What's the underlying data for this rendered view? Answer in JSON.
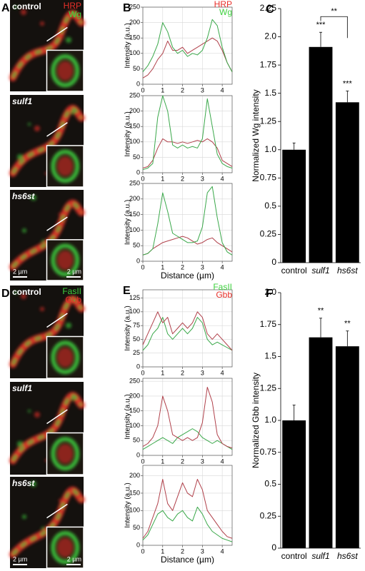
{
  "micrographs": [
    {
      "panel": "A",
      "channels": [
        {
          "name": "HRP",
          "color": "#e8302a"
        },
        {
          "name": "Wg",
          "color": "#3fd13f"
        }
      ],
      "rows": [
        {
          "label": "control",
          "italic": false
        },
        {
          "label": "sulf1",
          "italic": true
        },
        {
          "label": "hs6st",
          "italic": true,
          "scale_bar": "2 µm",
          "inset_scale_bar": "2 µm"
        }
      ]
    },
    {
      "panel": "D",
      "channels": [
        {
          "name": "FasII",
          "color": "#3fd13f"
        },
        {
          "name": "Gbb",
          "color": "#e8302a"
        }
      ],
      "rows": [
        {
          "label": "control",
          "italic": false
        },
        {
          "label": "sulf1",
          "italic": true
        },
        {
          "label": "hs6st",
          "italic": true,
          "scale_bar": "2 µm",
          "inset_scale_bar": "2 µm"
        }
      ]
    }
  ],
  "chart_data": [
    {
      "type": "line",
      "panel": "B",
      "ylabel": "Intensity (a.u.)",
      "legend": true,
      "grid": true,
      "x": [
        0,
        0.25,
        0.5,
        0.75,
        1,
        1.25,
        1.5,
        1.75,
        2,
        2.25,
        2.5,
        2.75,
        3,
        3.25,
        3.5,
        3.75,
        4,
        4.25,
        4.5
      ],
      "series": [
        {
          "name": "HRP",
          "color": "#b0404a",
          "values": [
            20,
            30,
            50,
            80,
            100,
            140,
            110,
            110,
            120,
            100,
            110,
            120,
            130,
            140,
            150,
            140,
            110,
            70,
            40
          ]
        },
        {
          "name": "Wg",
          "color": "#3aa84a",
          "values": [
            40,
            60,
            90,
            130,
            200,
            170,
            120,
            100,
            110,
            90,
            100,
            95,
            110,
            150,
            210,
            190,
            120,
            70,
            40
          ]
        }
      ],
      "xlim": [
        0,
        4.5
      ],
      "xticks": [
        0,
        1,
        2,
        3,
        4
      ],
      "ylim": [
        0,
        250
      ],
      "yticks": [
        0,
        50,
        100,
        150,
        200,
        250
      ]
    },
    {
      "type": "line",
      "legend": false,
      "grid": true,
      "ylabel": "Intensity (a.u.)",
      "x": [
        0,
        0.25,
        0.5,
        0.75,
        1,
        1.25,
        1.5,
        1.75,
        2,
        2.25,
        2.5,
        2.75,
        3,
        3.25,
        3.5,
        3.75,
        4,
        4.25,
        4.5
      ],
      "series": [
        {
          "color": "#b0404a",
          "values": [
            15,
            20,
            40,
            80,
            110,
            100,
            100,
            95,
            100,
            95,
            100,
            105,
            100,
            110,
            100,
            80,
            40,
            30,
            20
          ]
        },
        {
          "color": "#3aa84a",
          "values": [
            10,
            15,
            30,
            180,
            250,
            200,
            90,
            80,
            90,
            80,
            85,
            80,
            110,
            240,
            150,
            60,
            30,
            20,
            15
          ]
        }
      ],
      "xlim": [
        0,
        4.5
      ],
      "xticks": [
        0,
        1,
        2,
        3,
        4
      ],
      "ylim": [
        0,
        250
      ],
      "yticks": [
        0,
        50,
        100,
        150,
        200,
        250
      ]
    },
    {
      "type": "line",
      "legend": false,
      "grid": true,
      "ylabel": "Intensity (a.u.)",
      "xlabel": "Distance (µm)",
      "x": [
        0,
        0.25,
        0.5,
        0.75,
        1,
        1.25,
        1.5,
        1.75,
        2,
        2.25,
        2.5,
        2.75,
        3,
        3.25,
        3.5,
        3.75,
        4,
        4.25,
        4.5
      ],
      "series": [
        {
          "color": "#b0404a",
          "values": [
            20,
            25,
            40,
            50,
            60,
            65,
            70,
            75,
            80,
            75,
            65,
            55,
            60,
            70,
            75,
            60,
            50,
            40,
            30
          ]
        },
        {
          "color": "#3aa84a",
          "values": [
            20,
            25,
            40,
            120,
            220,
            160,
            90,
            80,
            70,
            60,
            60,
            65,
            110,
            220,
            240,
            140,
            60,
            30,
            20
          ]
        }
      ],
      "xlim": [
        0,
        4.5
      ],
      "xticks": [
        0,
        1,
        2,
        3,
        4
      ],
      "ylim": [
        0,
        250
      ],
      "yticks": [
        0,
        50,
        100,
        150,
        200,
        250
      ]
    },
    {
      "type": "bar",
      "panel": "C",
      "ylabel": "Normalized Wg intensity",
      "color": "#000000",
      "categories": [
        "control",
        "sulf1",
        "hs6st"
      ],
      "italic": [
        false,
        true,
        true
      ],
      "values": [
        1.0,
        1.91,
        1.42
      ],
      "errors": [
        0.06,
        0.13,
        0.1
      ],
      "sig_labels": [
        null,
        "***",
        "***"
      ],
      "bracket": {
        "between": [
          1,
          2
        ],
        "label": "**"
      },
      "ylim": [
        0,
        2.25
      ],
      "yticks": [
        0,
        0.25,
        0.5,
        0.75,
        {
          "value": 1,
          "label": "1.0"
        },
        1.25,
        1.5,
        1.75,
        {
          "value": 2,
          "label": "2.0"
        },
        2.25
      ]
    },
    {
      "type": "line",
      "panel": "E",
      "ylabel": "Intensity (a.u.)",
      "legend": true,
      "grid": true,
      "x": [
        0,
        0.25,
        0.5,
        0.75,
        1,
        1.25,
        1.5,
        1.75,
        2,
        2.25,
        2.5,
        2.75,
        3,
        3.25,
        3.5,
        3.75,
        4,
        4.25,
        4.5
      ],
      "series": [
        {
          "name": "FasII",
          "color": "#3aa84a",
          "values": [
            30,
            40,
            60,
            70,
            90,
            60,
            50,
            60,
            70,
            60,
            70,
            90,
            80,
            50,
            40,
            45,
            40,
            35,
            30
          ]
        },
        {
          "name": "Gbb",
          "color": "#b0404a",
          "values": [
            40,
            60,
            80,
            100,
            80,
            90,
            60,
            70,
            80,
            70,
            80,
            100,
            90,
            60,
            50,
            60,
            50,
            40,
            30
          ]
        }
      ],
      "xlim": [
        0,
        4.5
      ],
      "xticks": [
        0,
        1,
        2,
        3,
        4
      ],
      "ylim": [
        0,
        140
      ],
      "yticks": [
        0,
        25,
        50,
        75,
        100,
        125
      ]
    },
    {
      "type": "line",
      "legend": false,
      "grid": true,
      "ylabel": "Intensity (a.u.)",
      "x": [
        0,
        0.25,
        0.5,
        0.75,
        1,
        1.25,
        1.5,
        1.75,
        2,
        2.25,
        2.5,
        2.75,
        3,
        3.25,
        3.5,
        3.75,
        4,
        4.25,
        4.5
      ],
      "series": [
        {
          "color": "#3aa84a",
          "values": [
            20,
            30,
            40,
            50,
            60,
            50,
            40,
            60,
            70,
            80,
            90,
            80,
            60,
            50,
            40,
            50,
            40,
            30,
            20
          ]
        },
        {
          "color": "#b0404a",
          "values": [
            30,
            40,
            60,
            100,
            200,
            150,
            70,
            60,
            50,
            60,
            50,
            60,
            110,
            230,
            180,
            70,
            40,
            30,
            25
          ]
        }
      ],
      "xlim": [
        0,
        4.5
      ],
      "xticks": [
        0,
        1,
        2,
        3,
        4
      ],
      "ylim": [
        0,
        260
      ],
      "yticks": [
        0,
        50,
        100,
        150,
        200,
        250
      ]
    },
    {
      "type": "line",
      "legend": false,
      "grid": true,
      "ylabel": "Intensity (a.u.)",
      "xlabel": "Distance (µm)",
      "x": [
        0,
        0.25,
        0.5,
        0.75,
        1,
        1.25,
        1.5,
        1.75,
        2,
        2.25,
        2.5,
        2.75,
        3,
        3.25,
        3.5,
        3.75,
        4,
        4.25,
        4.5
      ],
      "series": [
        {
          "color": "#3aa84a",
          "values": [
            15,
            30,
            60,
            90,
            100,
            80,
            70,
            90,
            100,
            80,
            70,
            110,
            90,
            60,
            40,
            30,
            20,
            15,
            10
          ]
        },
        {
          "color": "#b0404a",
          "values": [
            20,
            40,
            80,
            120,
            190,
            120,
            100,
            140,
            180,
            150,
            140,
            190,
            160,
            100,
            80,
            60,
            40,
            25,
            20
          ]
        }
      ],
      "xlim": [
        0,
        4.5
      ],
      "xticks": [
        0,
        1,
        2,
        3,
        4
      ],
      "ylim": [
        0,
        230
      ],
      "yticks": [
        0,
        50,
        100,
        150,
        200
      ]
    },
    {
      "type": "bar",
      "panel": "F",
      "ylabel": "Normalized Gbb intensity",
      "color": "#000000",
      "categories": [
        "control",
        "sulf1",
        "hs6st"
      ],
      "italic": [
        false,
        true,
        true
      ],
      "values": [
        1.0,
        1.65,
        1.58
      ],
      "errors": [
        0.12,
        0.15,
        0.12
      ],
      "sig_labels": [
        null,
        "**",
        "**"
      ],
      "ylim": [
        0,
        2.0
      ],
      "yticks": [
        0,
        0.25,
        0.5,
        0.75,
        {
          "value": 1,
          "label": "1.0"
        },
        1.25,
        1.5,
        1.75,
        {
          "value": 2,
          "label": "2.0"
        }
      ]
    }
  ]
}
